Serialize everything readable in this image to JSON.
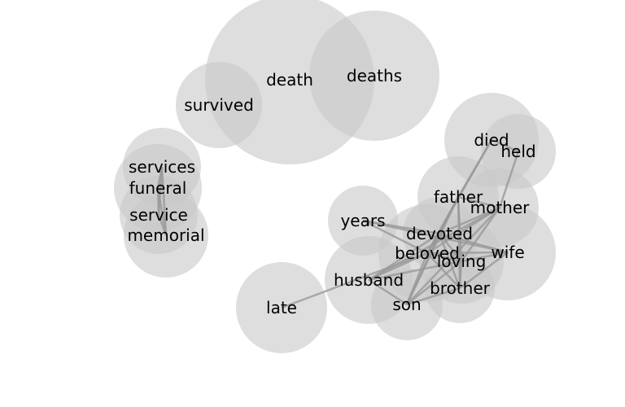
{
  "graph": {
    "colors": {
      "bubble": "#c8c8c8",
      "edge": "#999999",
      "text": "#000000"
    },
    "nodes": [
      {
        "id": "death",
        "label": "death"
      },
      {
        "id": "deaths",
        "label": "deaths"
      },
      {
        "id": "survived",
        "label": "survived"
      },
      {
        "id": "services",
        "label": "services"
      },
      {
        "id": "funeral",
        "label": "funeral"
      },
      {
        "id": "service",
        "label": "service"
      },
      {
        "id": "memorial",
        "label": "memorial"
      },
      {
        "id": "died",
        "label": "died"
      },
      {
        "id": "held",
        "label": "held"
      },
      {
        "id": "father",
        "label": "father"
      },
      {
        "id": "mother",
        "label": "mother"
      },
      {
        "id": "years",
        "label": "years"
      },
      {
        "id": "devoted",
        "label": "devoted"
      },
      {
        "id": "beloved",
        "label": "beloved"
      },
      {
        "id": "wife",
        "label": "wife"
      },
      {
        "id": "loving",
        "label": "loving"
      },
      {
        "id": "husband",
        "label": "husband"
      },
      {
        "id": "brother",
        "label": "brother"
      },
      {
        "id": "son",
        "label": "son"
      },
      {
        "id": "late",
        "label": "late"
      }
    ],
    "edges": [
      [
        "services",
        "funeral"
      ],
      [
        "services",
        "service"
      ],
      [
        "services",
        "memorial"
      ],
      [
        "funeral",
        "service"
      ],
      [
        "funeral",
        "memorial"
      ],
      [
        "service",
        "memorial"
      ],
      [
        "died",
        "held"
      ],
      [
        "died",
        "father"
      ],
      [
        "died",
        "beloved"
      ],
      [
        "held",
        "mother"
      ],
      [
        "father",
        "mother"
      ],
      [
        "father",
        "devoted"
      ],
      [
        "father",
        "beloved"
      ],
      [
        "father",
        "loving"
      ],
      [
        "father",
        "brother"
      ],
      [
        "father",
        "son"
      ],
      [
        "mother",
        "devoted"
      ],
      [
        "mother",
        "beloved"
      ],
      [
        "mother",
        "loving"
      ],
      [
        "mother",
        "husband"
      ],
      [
        "mother",
        "son"
      ],
      [
        "years",
        "devoted"
      ],
      [
        "years",
        "beloved"
      ],
      [
        "years",
        "wife"
      ],
      [
        "devoted",
        "beloved"
      ],
      [
        "devoted",
        "loving"
      ],
      [
        "devoted",
        "wife"
      ],
      [
        "devoted",
        "husband"
      ],
      [
        "devoted",
        "brother"
      ],
      [
        "devoted",
        "son"
      ],
      [
        "beloved",
        "loving"
      ],
      [
        "beloved",
        "wife"
      ],
      [
        "beloved",
        "husband"
      ],
      [
        "beloved",
        "brother"
      ],
      [
        "beloved",
        "son"
      ],
      [
        "loving",
        "wife"
      ],
      [
        "loving",
        "husband"
      ],
      [
        "loving",
        "brother"
      ],
      [
        "loving",
        "son"
      ],
      [
        "wife",
        "brother"
      ],
      [
        "husband",
        "son"
      ],
      [
        "brother",
        "son"
      ],
      [
        "late",
        "beloved"
      ]
    ]
  }
}
